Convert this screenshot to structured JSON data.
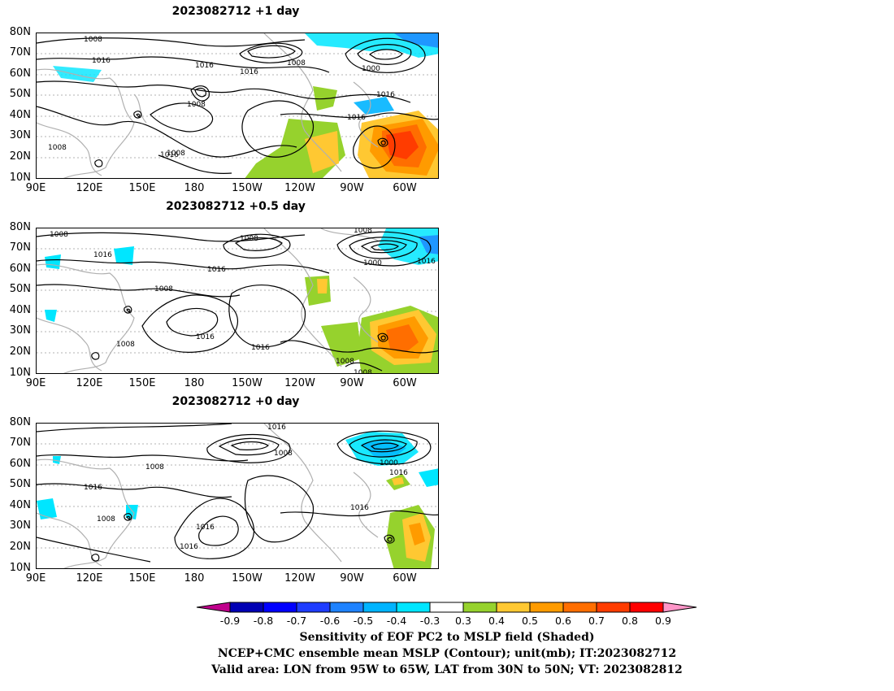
{
  "panels": [
    {
      "title": "2023082712  +1 day"
    },
    {
      "title": "2023082712  +0.5 day"
    },
    {
      "title": "2023082712  +0 day"
    }
  ],
  "lat_labels": [
    "80N",
    "70N",
    "60N",
    "50N",
    "40N",
    "30N",
    "20N",
    "10N"
  ],
  "lon_labels": [
    "90E",
    "120E",
    "150E",
    "180",
    "150W",
    "120W",
    "90W",
    "60W"
  ],
  "contour_labels": {
    "p1": [
      "1008",
      "1016",
      "1016",
      "1008",
      "1016",
      "1008",
      "1000",
      "1016",
      "1008",
      "1016",
      "1008",
      "1016"
    ],
    "p2": [
      "1008",
      "1016",
      "1008",
      "1008",
      "1016",
      "1008",
      "1000",
      "1016",
      "1016",
      "1008",
      "1016",
      "1008",
      "1008"
    ],
    "p3": [
      "1016",
      "1008",
      "1008",
      "1016",
      "1008",
      "1016",
      "1016",
      "1000",
      "1016",
      "1016"
    ]
  },
  "colorbar": {
    "ticks": [
      "-0.9",
      "-0.8",
      "-0.7",
      "-0.6",
      "-0.5",
      "-0.4",
      "-0.3",
      "0.3",
      "0.4",
      "0.5",
      "0.6",
      "0.7",
      "0.8",
      "0.9"
    ],
    "colors": [
      "#c0008c",
      "#0000b4",
      "#0000ff",
      "#1e3cff",
      "#1e82ff",
      "#00b4ff",
      "#00e6ff",
      "#ffffff",
      "#96d22d",
      "#ffc832",
      "#ff9b00",
      "#ff6e00",
      "#ff3c00",
      "#ff0000",
      "#ff96c8"
    ]
  },
  "caption": {
    "line1": "Sensitivity of EOF PC2 to MSLP field (Shaded)",
    "line2": "NCEP+CMC ensemble mean MSLP (Contour); unit(mb); IT:2023082712",
    "line3": "Valid area: LON from 95W to 65W, LAT from 30N to 50N; VT: 2023082812"
  }
}
